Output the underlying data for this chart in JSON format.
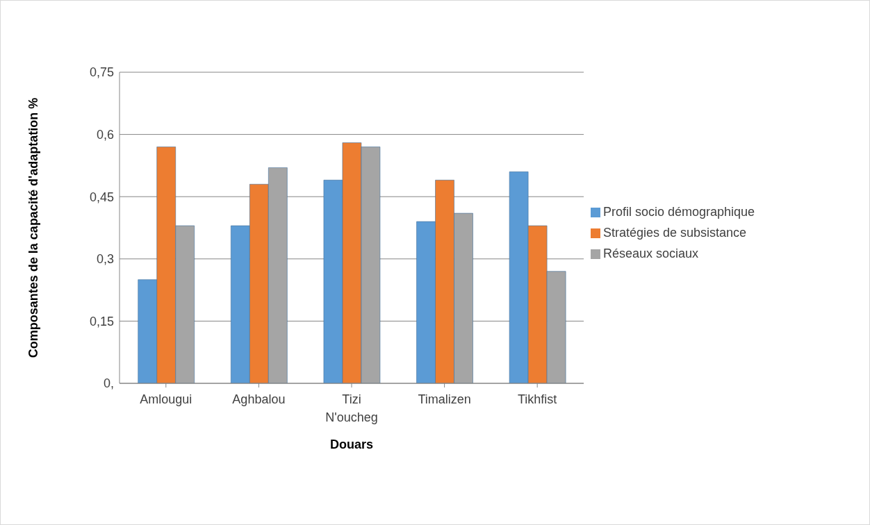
{
  "chart_data": {
    "type": "bar",
    "xlabel": "Douars",
    "ylabel": "Composantes de la capacité d'adaptation %",
    "categories": [
      "Amlougui",
      "Aghbalou",
      "Tizi N'oucheg",
      "Timalizen",
      "Tikhfist"
    ],
    "series": [
      {
        "name": "Profil socio démographique",
        "color": "#5b9bd5",
        "values": [
          0.25,
          0.38,
          0.49,
          0.39,
          0.51
        ]
      },
      {
        "name": "Stratégies de subsistance",
        "color": "#ed7d31",
        "values": [
          0.57,
          0.48,
          0.58,
          0.49,
          0.38
        ]
      },
      {
        "name": "Réseaux sociaux",
        "color": "#a5a5a5",
        "values": [
          0.38,
          0.52,
          0.57,
          0.41,
          0.27
        ]
      }
    ],
    "ylim": [
      0,
      0.75
    ],
    "yticks": [
      {
        "value": 0,
        "label": "0,"
      },
      {
        "value": 0.15,
        "label": "0,15"
      },
      {
        "value": 0.3,
        "label": "0,3"
      },
      {
        "value": 0.45,
        "label": "0,45"
      },
      {
        "value": 0.6,
        "label": "0,6"
      },
      {
        "value": 0.75,
        "label": "0,75"
      }
    ],
    "grid": "y",
    "legend": "right"
  }
}
